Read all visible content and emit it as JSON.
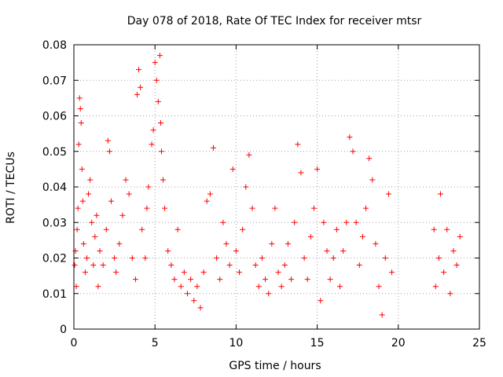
{
  "chart_data": {
    "type": "scatter",
    "title": "Day 078 of 2018, Rate Of TEC Index for receiver mtsr",
    "xlabel": "GPS time / hours",
    "ylabel": "ROTI / TECUs",
    "xlim": [
      0,
      25
    ],
    "ylim": [
      0,
      0.08
    ],
    "x_ticks": [
      0,
      5,
      10,
      15,
      20,
      25
    ],
    "y_ticks": [
      0,
      0.01,
      0.02,
      0.03,
      0.04,
      0.05,
      0.06,
      0.07,
      0.08
    ],
    "x_tick_labels": [
      "0",
      "5",
      "10",
      "15",
      "20",
      "25"
    ],
    "y_tick_labels": [
      "0",
      "0.01",
      "0.02",
      "0.03",
      "0.04",
      "0.05",
      "0.06",
      "0.07",
      "0.08"
    ],
    "grid": true,
    "marker": "+",
    "series": [
      {
        "color": "#ff0000",
        "points": [
          [
            0.05,
            0.018
          ],
          [
            0.1,
            0.022
          ],
          [
            0.15,
            0.012
          ],
          [
            0.2,
            0.028
          ],
          [
            0.25,
            0.034
          ],
          [
            0.3,
            0.052
          ],
          [
            0.35,
            0.065
          ],
          [
            0.4,
            0.062
          ],
          [
            0.45,
            0.058
          ],
          [
            0.5,
            0.045
          ],
          [
            0.55,
            0.036
          ],
          [
            0.6,
            0.024
          ],
          [
            0.7,
            0.016
          ],
          [
            0.8,
            0.02
          ],
          [
            0.9,
            0.038
          ],
          [
            1.0,
            0.042
          ],
          [
            1.1,
            0.03
          ],
          [
            1.2,
            0.018
          ],
          [
            1.3,
            0.026
          ],
          [
            1.4,
            0.032
          ],
          [
            1.5,
            0.012
          ],
          [
            1.6,
            0.022
          ],
          [
            1.8,
            0.018
          ],
          [
            2.0,
            0.028
          ],
          [
            2.1,
            0.053
          ],
          [
            2.2,
            0.05
          ],
          [
            2.3,
            0.036
          ],
          [
            2.5,
            0.02
          ],
          [
            2.6,
            0.016
          ],
          [
            2.8,
            0.024
          ],
          [
            3.0,
            0.032
          ],
          [
            3.2,
            0.042
          ],
          [
            3.4,
            0.038
          ],
          [
            3.6,
            0.02
          ],
          [
            3.8,
            0.014
          ],
          [
            3.9,
            0.066
          ],
          [
            4.0,
            0.073
          ],
          [
            4.1,
            0.068
          ],
          [
            4.2,
            0.028
          ],
          [
            4.4,
            0.02
          ],
          [
            4.5,
            0.034
          ],
          [
            4.6,
            0.04
          ],
          [
            4.8,
            0.052
          ],
          [
            4.9,
            0.056
          ],
          [
            5.0,
            0.075
          ],
          [
            5.1,
            0.07
          ],
          [
            5.2,
            0.064
          ],
          [
            5.3,
            0.077
          ],
          [
            5.35,
            0.058
          ],
          [
            5.4,
            0.05
          ],
          [
            5.5,
            0.042
          ],
          [
            5.6,
            0.034
          ],
          [
            5.8,
            0.022
          ],
          [
            6.0,
            0.018
          ],
          [
            6.2,
            0.014
          ],
          [
            6.4,
            0.028
          ],
          [
            6.6,
            0.012
          ],
          [
            6.8,
            0.016
          ],
          [
            7.0,
            0.01
          ],
          [
            7.2,
            0.014
          ],
          [
            7.4,
            0.008
          ],
          [
            7.6,
            0.012
          ],
          [
            7.8,
            0.006
          ],
          [
            8.0,
            0.016
          ],
          [
            8.2,
            0.036
          ],
          [
            8.4,
            0.038
          ],
          [
            8.6,
            0.051
          ],
          [
            8.8,
            0.02
          ],
          [
            9.0,
            0.014
          ],
          [
            9.2,
            0.03
          ],
          [
            9.4,
            0.024
          ],
          [
            9.6,
            0.018
          ],
          [
            9.8,
            0.045
          ],
          [
            10.0,
            0.022
          ],
          [
            10.2,
            0.016
          ],
          [
            10.4,
            0.028
          ],
          [
            10.6,
            0.04
          ],
          [
            10.8,
            0.049
          ],
          [
            11.0,
            0.034
          ],
          [
            11.2,
            0.018
          ],
          [
            11.4,
            0.012
          ],
          [
            11.6,
            0.02
          ],
          [
            11.8,
            0.014
          ],
          [
            12.0,
            0.01
          ],
          [
            12.2,
            0.024
          ],
          [
            12.4,
            0.034
          ],
          [
            12.6,
            0.016
          ],
          [
            12.8,
            0.012
          ],
          [
            13.0,
            0.018
          ],
          [
            13.2,
            0.024
          ],
          [
            13.4,
            0.014
          ],
          [
            13.6,
            0.03
          ],
          [
            13.8,
            0.052
          ],
          [
            14.0,
            0.044
          ],
          [
            14.2,
            0.02
          ],
          [
            14.4,
            0.014
          ],
          [
            14.6,
            0.026
          ],
          [
            14.8,
            0.034
          ],
          [
            15.0,
            0.045
          ],
          [
            15.2,
            0.008
          ],
          [
            15.4,
            0.03
          ],
          [
            15.6,
            0.022
          ],
          [
            15.8,
            0.014
          ],
          [
            16.0,
            0.02
          ],
          [
            16.2,
            0.028
          ],
          [
            16.4,
            0.012
          ],
          [
            16.6,
            0.022
          ],
          [
            16.8,
            0.03
          ],
          [
            17.0,
            0.054
          ],
          [
            17.2,
            0.05
          ],
          [
            17.4,
            0.03
          ],
          [
            17.6,
            0.018
          ],
          [
            17.8,
            0.026
          ],
          [
            18.0,
            0.034
          ],
          [
            18.2,
            0.048
          ],
          [
            18.4,
            0.042
          ],
          [
            18.6,
            0.024
          ],
          [
            18.8,
            0.012
          ],
          [
            19.0,
            0.004
          ],
          [
            19.2,
            0.02
          ],
          [
            19.4,
            0.038
          ],
          [
            19.6,
            0.016
          ],
          [
            22.2,
            0.028
          ],
          [
            22.3,
            0.012
          ],
          [
            22.5,
            0.02
          ],
          [
            22.6,
            0.038
          ],
          [
            22.8,
            0.016
          ],
          [
            23.0,
            0.028
          ],
          [
            23.2,
            0.01
          ],
          [
            23.4,
            0.022
          ],
          [
            23.6,
            0.018
          ],
          [
            23.8,
            0.026
          ]
        ]
      }
    ]
  }
}
